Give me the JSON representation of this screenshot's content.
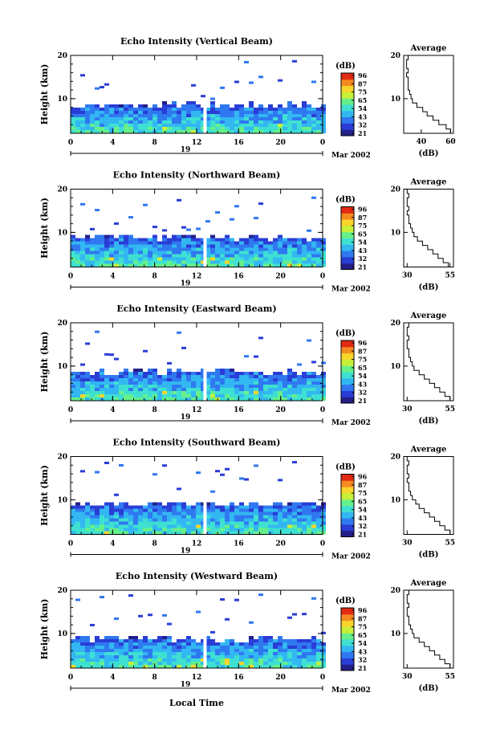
{
  "chart_data": [
    {
      "type": "heatmap",
      "title": "Echo Intensity (Vertical Beam)",
      "ylabel": "Height (km)",
      "ylim": [
        2,
        20
      ],
      "yticks": [
        "20",
        "10"
      ],
      "xticks": [
        "0",
        "4",
        "8",
        "12",
        "16",
        "20",
        "0"
      ],
      "xlim": [
        0,
        24
      ],
      "day_label": "19",
      "date_label": "Mar 2002",
      "gap_hour": 12.8,
      "cloud_top_km": 8.8,
      "colorbar": {
        "label": "(dB)",
        "ticks": [
          "96",
          "87",
          "75",
          "65",
          "54",
          "43",
          "32",
          "21"
        ]
      },
      "average": {
        "title": "Average",
        "xlabel": "(dB)",
        "xticks": [
          "40",
          "60"
        ],
        "xlim": [
          28,
          62
        ],
        "yticks": [
          "20",
          "10"
        ],
        "profile": [
          [
            2,
            62
          ],
          [
            3,
            60
          ],
          [
            4,
            57
          ],
          [
            5,
            52
          ],
          [
            6,
            48
          ],
          [
            7,
            44
          ],
          [
            8,
            41
          ],
          [
            9,
            37
          ],
          [
            10,
            34
          ],
          [
            11,
            33
          ],
          [
            12,
            32
          ],
          [
            13,
            31
          ],
          [
            14,
            31
          ],
          [
            15,
            31
          ],
          [
            16,
            30
          ],
          [
            17,
            31
          ],
          [
            18,
            30
          ],
          [
            19,
            30
          ],
          [
            20,
            31
          ]
        ]
      }
    },
    {
      "type": "heatmap",
      "title": "Echo Intensity (Northward Beam)",
      "ylabel": "Height (km)",
      "ylim": [
        2,
        20
      ],
      "yticks": [
        "20",
        "10"
      ],
      "xticks": [
        "0",
        "4",
        "8",
        "12",
        "16",
        "20",
        "0"
      ],
      "xlim": [
        0,
        24
      ],
      "day_label": "19",
      "date_label": "Mar 2002",
      "gap_hour": 12.8,
      "cloud_top_km": 9.2,
      "colorbar": {
        "label": "(dB)",
        "ticks": [
          "96",
          "87",
          "75",
          "65",
          "54",
          "43",
          "32",
          "21"
        ]
      },
      "average": {
        "title": "Average",
        "xlabel": "(dB)",
        "xticks": [
          "30",
          "55"
        ],
        "xlim": [
          28,
          57
        ],
        "yticks": [
          "20",
          "10"
        ],
        "profile": [
          [
            2,
            56
          ],
          [
            3,
            54
          ],
          [
            4,
            51
          ],
          [
            5,
            48
          ],
          [
            6,
            45
          ],
          [
            7,
            42
          ],
          [
            8,
            39
          ],
          [
            9,
            36
          ],
          [
            10,
            34
          ],
          [
            11,
            33
          ],
          [
            12,
            32
          ],
          [
            13,
            31
          ],
          [
            14,
            31
          ],
          [
            15,
            30
          ],
          [
            16,
            31
          ],
          [
            17,
            30
          ],
          [
            18,
            30
          ],
          [
            19,
            31
          ],
          [
            20,
            30
          ]
        ]
      }
    },
    {
      "type": "heatmap",
      "title": "Echo Intensity (Eastward Beam)",
      "ylabel": "Height (km)",
      "ylim": [
        2,
        20
      ],
      "yticks": [
        "20",
        "10"
      ],
      "xticks": [
        "0",
        "4",
        "8",
        "12",
        "16",
        "20",
        "0"
      ],
      "xlim": [
        0,
        24
      ],
      "day_label": "19",
      "date_label": "Mar 2002",
      "gap_hour": 12.8,
      "cloud_top_km": 9.2,
      "colorbar": {
        "label": "(dB)",
        "ticks": [
          "96",
          "87",
          "75",
          "65",
          "54",
          "43",
          "32",
          "21"
        ]
      },
      "average": {
        "title": "Average",
        "xlabel": "(dB)",
        "xticks": [
          "30",
          "55"
        ],
        "xlim": [
          28,
          57
        ],
        "yticks": [
          "20",
          "10"
        ],
        "profile": [
          [
            2,
            56
          ],
          [
            3,
            55
          ],
          [
            4,
            52
          ],
          [
            5,
            49
          ],
          [
            6,
            46
          ],
          [
            7,
            43
          ],
          [
            8,
            40
          ],
          [
            9,
            37
          ],
          [
            10,
            34
          ],
          [
            11,
            33
          ],
          [
            12,
            32
          ],
          [
            13,
            31
          ],
          [
            14,
            31
          ],
          [
            15,
            30
          ],
          [
            16,
            30
          ],
          [
            17,
            31
          ],
          [
            18,
            30
          ],
          [
            19,
            30
          ],
          [
            20,
            31
          ]
        ]
      }
    },
    {
      "type": "heatmap",
      "title": "Echo Intensity (Southward Beam)",
      "ylabel": "Height (km)",
      "ylim": [
        2,
        20
      ],
      "yticks": [
        "20",
        "10"
      ],
      "xticks": [
        "0",
        "4",
        "8",
        "12",
        "16",
        "20",
        "0"
      ],
      "xlim": [
        0,
        24
      ],
      "day_label": "19",
      "date_label": "Mar 2002",
      "gap_hour": 12.8,
      "cloud_top_km": 9.4,
      "colorbar": {
        "label": "(dB)",
        "ticks": [
          "96",
          "87",
          "75",
          "65",
          "54",
          "43",
          "32",
          "21"
        ]
      },
      "average": {
        "title": "Average",
        "xlabel": "(dB)",
        "xticks": [
          "30",
          "55"
        ],
        "xlim": [
          28,
          57
        ],
        "yticks": [
          "20",
          "10"
        ],
        "profile": [
          [
            2,
            56
          ],
          [
            3,
            55
          ],
          [
            4,
            52
          ],
          [
            5,
            49
          ],
          [
            6,
            46
          ],
          [
            7,
            43
          ],
          [
            8,
            40
          ],
          [
            9,
            37
          ],
          [
            10,
            35
          ],
          [
            11,
            33
          ],
          [
            12,
            32
          ],
          [
            13,
            31
          ],
          [
            14,
            31
          ],
          [
            15,
            30
          ],
          [
            16,
            31
          ],
          [
            17,
            30
          ],
          [
            18,
            30
          ],
          [
            19,
            31
          ],
          [
            20,
            30
          ]
        ]
      }
    },
    {
      "type": "heatmap",
      "title": "Echo Intensity (Westward Beam)",
      "ylabel": "Height (km)",
      "ylim": [
        2,
        20
      ],
      "yticks": [
        "20",
        "10"
      ],
      "xticks": [
        "0",
        "4",
        "8",
        "12",
        "16",
        "20",
        "0"
      ],
      "xlim": [
        0,
        24
      ],
      "day_label": "19",
      "date_label": "Mar 2002",
      "gap_hour": 12.8,
      "cloud_top_km": 9.2,
      "colorbar": {
        "label": "(dB)",
        "ticks": [
          "96",
          "87",
          "75",
          "65",
          "54",
          "43",
          "32",
          "21"
        ]
      },
      "average": {
        "title": "Average",
        "xlabel": "(dB)",
        "xticks": [
          "30",
          "55"
        ],
        "xlim": [
          28,
          57
        ],
        "yticks": [
          "20",
          "10"
        ],
        "profile": [
          [
            2,
            56
          ],
          [
            3,
            55
          ],
          [
            4,
            52
          ],
          [
            5,
            49
          ],
          [
            6,
            46
          ],
          [
            7,
            43
          ],
          [
            8,
            40
          ],
          [
            9,
            37
          ],
          [
            10,
            34
          ],
          [
            11,
            33
          ],
          [
            12,
            32
          ],
          [
            13,
            31
          ],
          [
            14,
            31
          ],
          [
            15,
            30
          ],
          [
            16,
            30
          ],
          [
            17,
            31
          ],
          [
            18,
            30
          ],
          [
            19,
            30
          ],
          [
            20,
            31
          ]
        ]
      }
    }
  ],
  "footer": {
    "xlabel": "Local Time"
  },
  "colors": {
    "colormap": [
      "#23208a",
      "#2a3dd6",
      "#2f78f0",
      "#33b7f2",
      "#3ee0d2",
      "#66f08a",
      "#c8f03a",
      "#f7d52a",
      "#f58a20",
      "#e22a12"
    ],
    "gap": "#ffffff"
  }
}
